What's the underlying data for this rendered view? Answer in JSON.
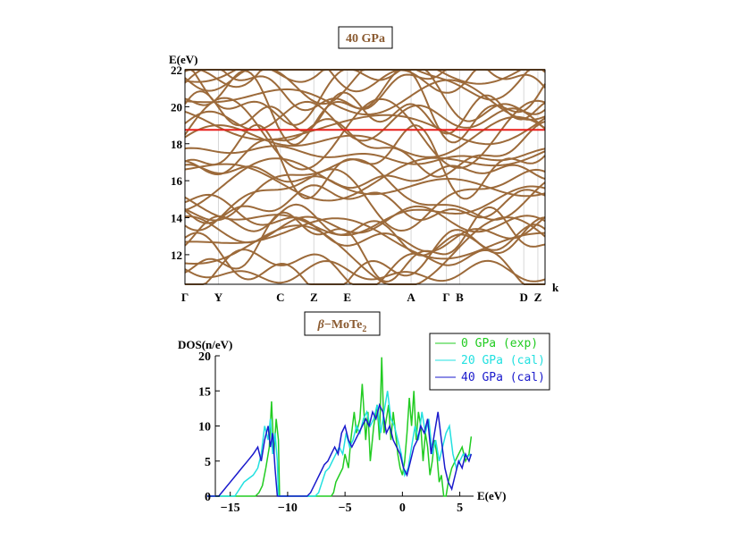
{
  "top_title": "40 GPa",
  "bottom_title": "β−MoTe2",
  "chart_data": [
    {
      "type": "line",
      "title": "40 GPa",
      "ylabel": "E(eV)",
      "xlabel": "k",
      "ylim": [
        10.4,
        22
      ],
      "y_ticks": [
        12,
        14,
        16,
        18,
        20,
        22
      ],
      "k_points": [
        {
          "label": "Γ",
          "pos": 0
        },
        {
          "label": "Y",
          "pos": 0.093
        },
        {
          "label": "C",
          "pos": 0.265
        },
        {
          "label": "Z",
          "pos": 0.358
        },
        {
          "label": "E",
          "pos": 0.451
        },
        {
          "label": "A",
          "pos": 0.628
        },
        {
          "label": "Γ",
          "pos": 0.726
        },
        {
          "label": "B",
          "pos": 0.763
        },
        {
          "label": "D",
          "pos": 0.941
        },
        {
          "label": "Z",
          "pos": 0.98
        }
      ],
      "reference_line_E": 18.75,
      "colors": {
        "bands": "#9c6a3a",
        "reference": "#e8201c",
        "grid": "#d8d8d8"
      }
    },
    {
      "type": "line",
      "title": "β−MoTe2",
      "ylabel": "DOS(n/eV)",
      "xlabel": "E(eV)",
      "xlim": [
        -17,
        6.2
      ],
      "ylim": [
        0,
        20
      ],
      "x_ticks": [
        -15,
        -10,
        -5,
        0,
        5
      ],
      "y_ticks": [
        0,
        5,
        10,
        15,
        20
      ],
      "series": [
        {
          "name": "0 GPa (exp)",
          "color": "#22cc22",
          "x": [
            -17,
            -12.8,
            -12.5,
            -12.2,
            -11.9,
            -11.6,
            -11.4,
            -11.2,
            -11.0,
            -10.8,
            -10.7,
            -6.2,
            -6.0,
            -5.8,
            -5.5,
            -5.2,
            -5.0,
            -4.7,
            -4.5,
            -4.2,
            -4.0,
            -3.7,
            -3.5,
            -3.2,
            -3.0,
            -2.8,
            -2.5,
            -2.2,
            -2.0,
            -1.8,
            -1.6,
            -1.4,
            -1.2,
            -1.0,
            -0.8,
            -0.6,
            -0.4,
            -0.2,
            0.0,
            0.2,
            0.4,
            0.6,
            0.8,
            1.0,
            1.2,
            1.4,
            1.6,
            1.8,
            2.0,
            2.2,
            2.4,
            2.6,
            2.8,
            3.0,
            3.2,
            3.4,
            3.6,
            3.8,
            4.0,
            4.3,
            4.6,
            4.9,
            5.2,
            5.5,
            5.8,
            6.0
          ],
          "y": [
            0,
            0,
            0.5,
            1.5,
            4,
            7,
            13.5,
            6,
            11,
            8,
            0,
            0,
            0.5,
            2,
            3,
            4,
            6,
            4,
            8,
            12,
            9,
            11,
            16,
            8,
            12,
            5,
            10,
            13,
            8,
            19.8,
            9,
            11,
            13,
            8,
            12,
            9,
            6,
            4,
            3,
            5,
            9,
            14,
            10,
            15,
            8,
            12,
            10,
            5,
            9,
            7,
            3,
            5,
            8,
            6,
            2,
            3,
            0,
            0,
            2,
            4,
            5,
            6,
            7,
            5,
            6,
            8.5
          ]
        },
        {
          "name": "20 GPa (cal)",
          "color": "#22e0e0",
          "x": [
            -17,
            -14.6,
            -14.2,
            -13.8,
            -13.4,
            -13.0,
            -12.6,
            -12.3,
            -12.0,
            -11.7,
            -11.5,
            -11.3,
            -11.1,
            -10.9,
            -10.8,
            -7.6,
            -7.3,
            -7.0,
            -6.7,
            -6.4,
            -6.1,
            -5.8,
            -5.5,
            -5.2,
            -4.9,
            -4.6,
            -4.3,
            -4.0,
            -3.7,
            -3.4,
            -3.1,
            -2.8,
            -2.5,
            -2.2,
            -1.9,
            -1.6,
            -1.3,
            -1.0,
            -0.7,
            -0.4,
            -0.1,
            0.2,
            0.5,
            0.8,
            1.1,
            1.4,
            1.7,
            2.0,
            2.3,
            2.6,
            2.9,
            3.2,
            3.5,
            3.8,
            4.1,
            4.4,
            4.7,
            5.0,
            5.3,
            5.6,
            6.0
          ],
          "y": [
            0,
            0,
            1,
            2,
            2.5,
            3,
            4,
            6,
            10,
            8,
            11,
            6,
            9,
            5,
            0,
            0,
            0.5,
            2,
            3.5,
            4,
            5,
            6,
            7,
            6,
            9,
            7,
            8,
            10,
            9,
            11,
            12,
            10,
            11,
            13,
            9,
            12,
            15,
            11,
            10,
            8,
            6,
            3,
            4,
            7,
            10,
            8,
            12,
            9,
            11,
            6,
            8,
            5,
            7,
            9,
            10,
            6,
            4,
            5,
            6,
            5.5,
            6
          ]
        },
        {
          "name": "40 GPa (cal)",
          "color": "#1a1acc",
          "x": [
            -17,
            -16.0,
            -15.5,
            -15.0,
            -14.5,
            -14.0,
            -13.5,
            -13.0,
            -12.6,
            -12.3,
            -12.0,
            -11.7,
            -11.5,
            -11.3,
            -11.1,
            -10.9,
            -8.3,
            -8.0,
            -7.7,
            -7.4,
            -7.1,
            -6.8,
            -6.5,
            -6.2,
            -5.9,
            -5.6,
            -5.3,
            -5.0,
            -4.7,
            -4.4,
            -4.1,
            -3.8,
            -3.5,
            -3.2,
            -2.9,
            -2.6,
            -2.3,
            -2.0,
            -1.7,
            -1.4,
            -1.1,
            -0.8,
            -0.5,
            -0.2,
            0.1,
            0.4,
            0.7,
            1.0,
            1.3,
            1.6,
            1.9,
            2.2,
            2.5,
            2.8,
            3.1,
            3.4,
            3.7,
            4.0,
            4.3,
            4.6,
            4.9,
            5.2,
            5.5,
            5.8,
            6.0
          ],
          "y": [
            0,
            0,
            1,
            2,
            3,
            4,
            5,
            6,
            7,
            5,
            8,
            10,
            7,
            9,
            4,
            0,
            0,
            0.5,
            1.5,
            2.5,
            3.5,
            4.5,
            5,
            6,
            7,
            6,
            9,
            10,
            8,
            7,
            8,
            9,
            10,
            11,
            10,
            12,
            11,
            13,
            12,
            9,
            10,
            8,
            7,
            6,
            4,
            3,
            5,
            7,
            8,
            10,
            9,
            11,
            6,
            9,
            12,
            8,
            4,
            2,
            1,
            3,
            5,
            4,
            6,
            5,
            6
          ]
        }
      ],
      "legend_position": "top-right"
    }
  ]
}
